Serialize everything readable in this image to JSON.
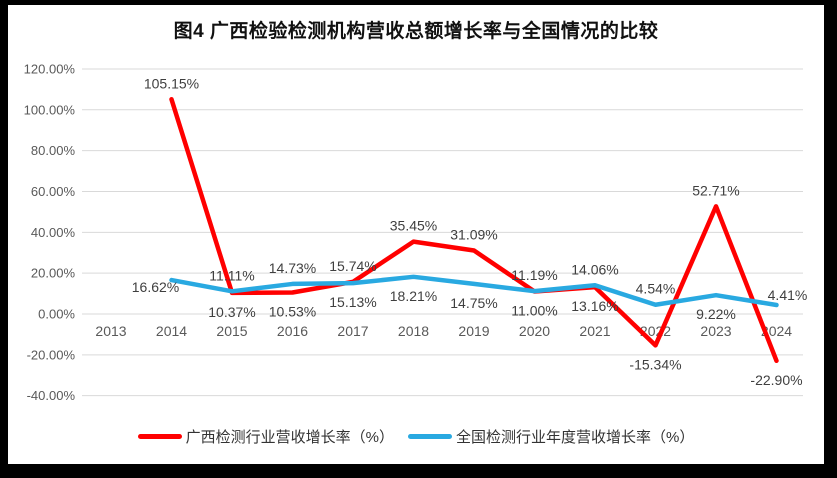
{
  "header": {
    "title": "图4 广西检验检测机构营收总额增长率与全国情况的比较"
  },
  "chart_data": {
    "type": "line",
    "title": "图4 广西检验检测机构营收总额增长率与全国情况的比较",
    "categories": [
      "2013",
      "2014",
      "2015",
      "2016",
      "2017",
      "2018",
      "2019",
      "2020",
      "2021",
      "2022",
      "2023",
      "2024"
    ],
    "y_axis": {
      "min": -40,
      "max": 120,
      "step": 20,
      "grid": true,
      "ticks": [
        {
          "value": 120,
          "label": "120.00%"
        },
        {
          "value": 100,
          "label": "100.00%"
        },
        {
          "value": 80,
          "label": "80.00%"
        },
        {
          "value": 60,
          "label": "60.00%"
        },
        {
          "value": 40,
          "label": "40.00%"
        },
        {
          "value": 20,
          "label": "20.00%"
        },
        {
          "value": 0,
          "label": "0.00%"
        },
        {
          "value": -20,
          "label": "-20.00%"
        },
        {
          "value": -40,
          "label": "-40.00%"
        }
      ]
    },
    "legend_position": "bottom",
    "series": [
      {
        "name": "广西检测行业营收增长率（%）",
        "color": "#FF0000",
        "values": [
          null,
          105.15,
          10.37,
          10.53,
          15.74,
          35.45,
          31.09,
          11.0,
          13.16,
          -15.34,
          52.71,
          -22.9
        ],
        "labels": [
          null,
          "105.15%",
          "10.37%",
          "10.53%",
          "15.74%",
          "35.45%",
          "31.09%",
          "11.00%",
          "13.16%",
          "-15.34%",
          "52.71%",
          "-22.90%"
        ],
        "label_pos": [
          null,
          "above",
          "below",
          "below",
          "above",
          "above",
          "above",
          "below",
          "below",
          "below",
          "above",
          "below"
        ]
      },
      {
        "name": "全国检测行业年度营收增长率（%）",
        "color": "#29A9E1",
        "values": [
          null,
          16.62,
          11.11,
          14.73,
          15.13,
          18.21,
          14.75,
          11.19,
          14.06,
          4.54,
          9.22,
          4.41
        ],
        "labels": [
          null,
          "16.62%",
          "11.11%",
          "14.73%",
          "15.13%",
          "18.21%",
          "14.75%",
          "11.19%",
          "14.06%",
          "4.54%",
          "9.22%",
          "4.41%"
        ],
        "label_pos": [
          null,
          "left",
          "above",
          "above",
          "below",
          "below",
          "below",
          "above",
          "above",
          "above",
          "below",
          "above-right"
        ]
      }
    ]
  }
}
